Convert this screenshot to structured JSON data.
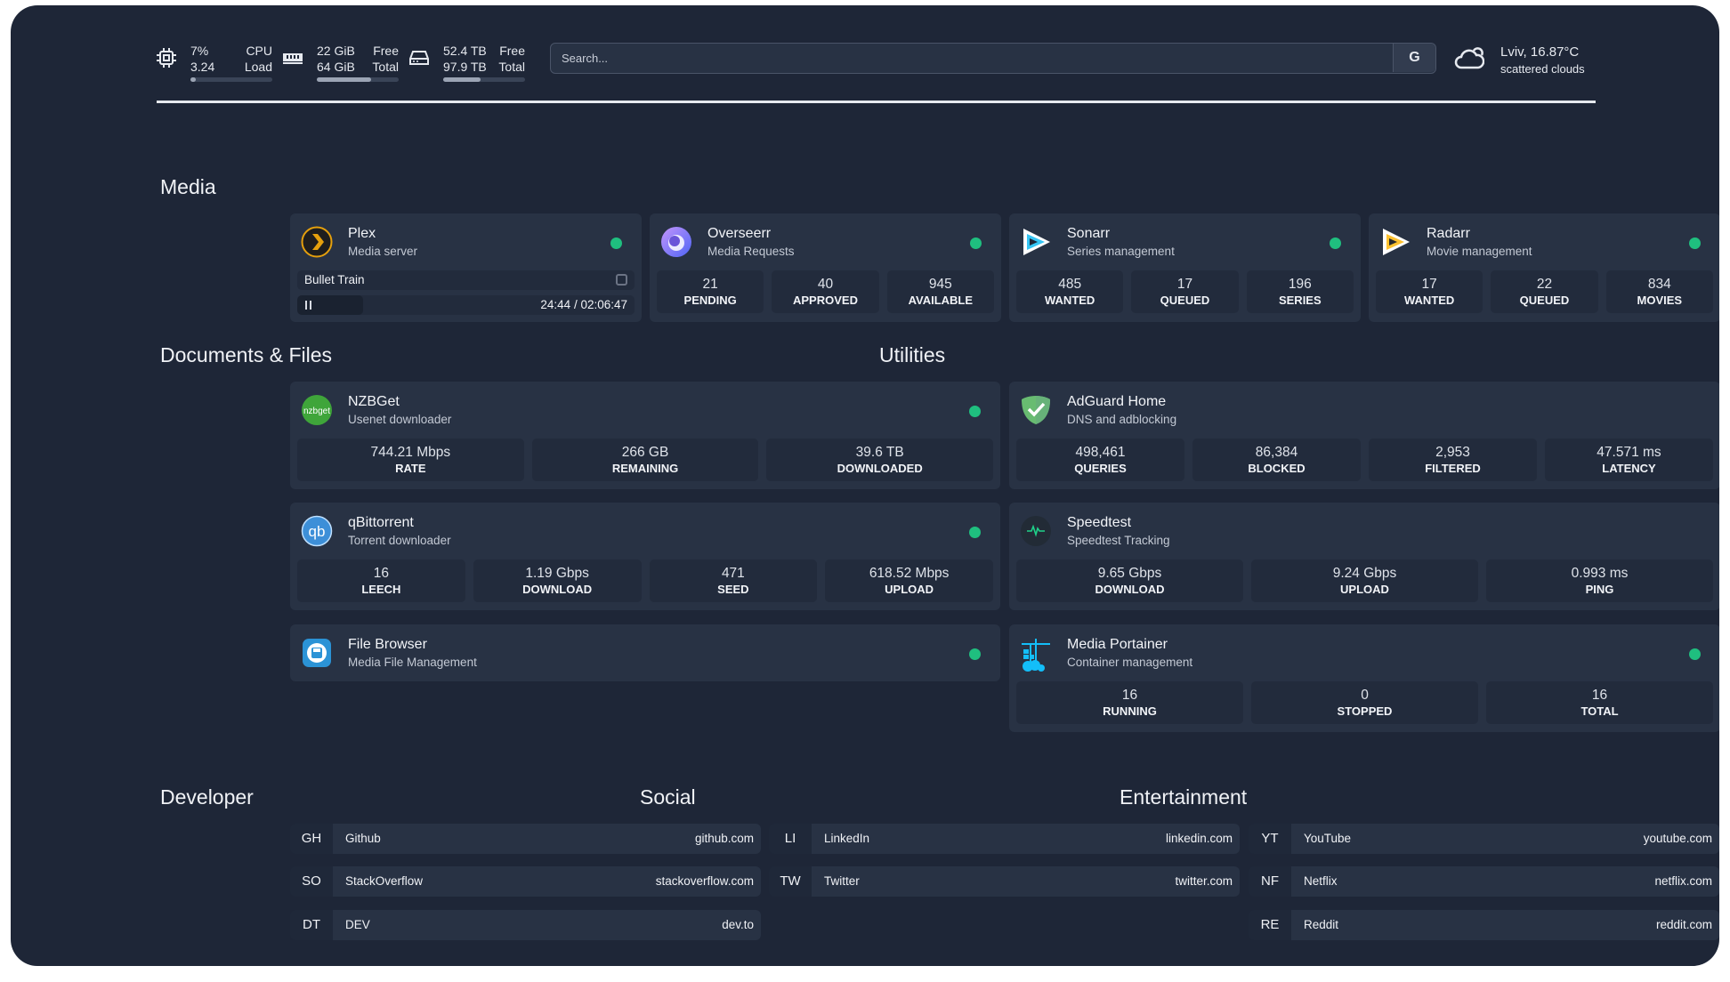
{
  "topbar": {
    "cpu": {
      "icon": "cpu-icon",
      "line1": "7%",
      "line2": "3.24",
      "label1": "CPU",
      "label2": "Load",
      "percent": 7
    },
    "ram": {
      "icon": "memory-icon",
      "line1": "22 GiB",
      "line2": "64 GiB",
      "label1": "Free",
      "label2": "Total",
      "percent": 66
    },
    "disk": {
      "icon": "disk-icon",
      "line1": "52.4 TB",
      "line2": "97.9 TB",
      "label1": "Free",
      "label2": "Total",
      "percent": 46
    },
    "search": {
      "placeholder": "Search...",
      "button": "G"
    },
    "weather": {
      "icon": "cloud-icon",
      "location": "Lviv, 16.87°C",
      "condition": "scattered clouds"
    }
  },
  "colors": {
    "background": "#1e2637",
    "card": "#283244",
    "status_ok": "#1fbf7f"
  },
  "sections": {
    "media": "Media",
    "documents": "Documents & Files",
    "utilities": "Utilities",
    "developer": "Developer",
    "social": "Social",
    "entertainment": "Entertainment"
  },
  "media": [
    {
      "name": "Plex",
      "desc": "Media server",
      "icon": "plex-icon",
      "nowplaying": {
        "title": "Bullet Train",
        "time": "24:44 / 02:06:47",
        "progress": 19.5,
        "state": "paused"
      }
    },
    {
      "name": "Overseerr",
      "desc": "Media Requests",
      "icon": "overseerr-icon",
      "stats": [
        {
          "v": "21",
          "l": "PENDING"
        },
        {
          "v": "40",
          "l": "APPROVED"
        },
        {
          "v": "945",
          "l": "AVAILABLE"
        }
      ]
    },
    {
      "name": "Sonarr",
      "desc": "Series management",
      "icon": "sonarr-icon",
      "stats": [
        {
          "v": "485",
          "l": "WANTED"
        },
        {
          "v": "17",
          "l": "QUEUED"
        },
        {
          "v": "196",
          "l": "SERIES"
        }
      ]
    },
    {
      "name": "Radarr",
      "desc": "Movie management",
      "icon": "radarr-icon",
      "stats": [
        {
          "v": "17",
          "l": "WANTED"
        },
        {
          "v": "22",
          "l": "QUEUED"
        },
        {
          "v": "834",
          "l": "MOVIES"
        }
      ]
    }
  ],
  "documents": [
    {
      "name": "NZBGet",
      "desc": "Usenet downloader",
      "icon": "nzbget-icon",
      "stats": [
        {
          "v": "744.21 Mbps",
          "l": "RATE"
        },
        {
          "v": "266 GB",
          "l": "REMAINING"
        },
        {
          "v": "39.6 TB",
          "l": "DOWNLOADED"
        }
      ]
    },
    {
      "name": "qBittorrent",
      "desc": "Torrent downloader",
      "icon": "qbittorrent-icon",
      "stats": [
        {
          "v": "16",
          "l": "LEECH"
        },
        {
          "v": "1.19 Gbps",
          "l": "DOWNLOAD"
        },
        {
          "v": "471",
          "l": "SEED"
        },
        {
          "v": "618.52 Mbps",
          "l": "UPLOAD"
        }
      ]
    },
    {
      "name": "File Browser",
      "desc": "Media File Management",
      "icon": "file-browser-icon"
    }
  ],
  "utilities": [
    {
      "name": "AdGuard Home",
      "desc": "DNS and adblocking",
      "icon": "adguard-icon",
      "nodot": true,
      "stats": [
        {
          "v": "498,461",
          "l": "QUERIES"
        },
        {
          "v": "86,384",
          "l": "BLOCKED"
        },
        {
          "v": "2,953",
          "l": "FILTERED"
        },
        {
          "v": "47.571 ms",
          "l": "LATENCY"
        }
      ]
    },
    {
      "name": "Speedtest",
      "desc": "Speedtest Tracking",
      "icon": "speedtest-icon",
      "nodot": true,
      "stats": [
        {
          "v": "9.65 Gbps",
          "l": "DOWNLOAD"
        },
        {
          "v": "9.24 Gbps",
          "l": "UPLOAD"
        },
        {
          "v": "0.993 ms",
          "l": "PING"
        }
      ]
    },
    {
      "name": "Media Portainer",
      "desc": "Container management",
      "icon": "portainer-icon",
      "stats": [
        {
          "v": "16",
          "l": "RUNNING"
        },
        {
          "v": "0",
          "l": "STOPPED"
        },
        {
          "v": "16",
          "l": "TOTAL"
        }
      ]
    }
  ],
  "bookmarks": {
    "developer": [
      {
        "abbr": "GH",
        "name": "Github",
        "url": "github.com"
      },
      {
        "abbr": "SO",
        "name": "StackOverflow",
        "url": "stackoverflow.com"
      },
      {
        "abbr": "DT",
        "name": "DEV",
        "url": "dev.to"
      }
    ],
    "social": [
      {
        "abbr": "LI",
        "name": "LinkedIn",
        "url": "linkedin.com"
      },
      {
        "abbr": "TW",
        "name": "Twitter",
        "url": "twitter.com"
      }
    ],
    "entertainment": [
      {
        "abbr": "YT",
        "name": "YouTube",
        "url": "youtube.com"
      },
      {
        "abbr": "NF",
        "name": "Netflix",
        "url": "netflix.com"
      },
      {
        "abbr": "RE",
        "name": "Reddit",
        "url": "reddit.com"
      }
    ]
  }
}
